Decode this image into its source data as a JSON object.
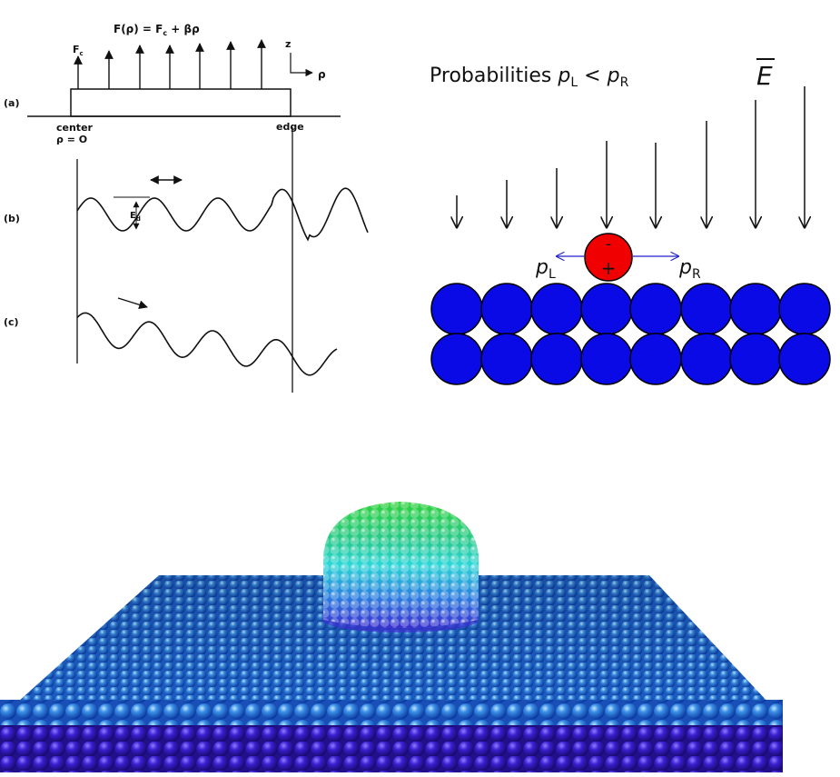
{
  "left_panel": {
    "force_label": {
      "text": "F(ρ) = F",
      "sub": "c",
      "rest": " + βρ"
    },
    "fc_label": {
      "text": "F",
      "sub": "c"
    },
    "z_axis": "z",
    "rho_axis": "ρ",
    "row_a": "(a)",
    "center": "center",
    "center_rho": "ρ = O",
    "edge": "edge",
    "row_b": "(b)",
    "ed_label": {
      "text": "E",
      "sub": "d"
    },
    "row_c": "(c)"
  },
  "right_panel": {
    "title": {
      "text": "Probabilities ",
      "p1": "p",
      "s1": "L",
      "op": " < ",
      "p2": "p",
      "s2": "R"
    },
    "field": "E",
    "minus": "-",
    "plus": "+",
    "left_prob": {
      "p": "p",
      "sub": "L"
    },
    "right_prob": {
      "p": "p",
      "sub": "R"
    }
  }
}
